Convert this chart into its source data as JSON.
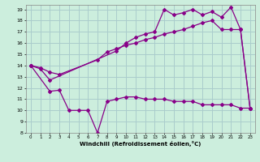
{
  "xlabel": "Windchill (Refroidissement éolien,°C)",
  "bg_color": "#cceedd",
  "grid_color": "#aacccc",
  "line_color": "#880088",
  "xlim": [
    -0.5,
    23.5
  ],
  "ylim": [
    8,
    19.4
  ],
  "xticks": [
    0,
    1,
    2,
    3,
    4,
    5,
    6,
    7,
    8,
    9,
    10,
    11,
    12,
    13,
    14,
    15,
    16,
    17,
    18,
    19,
    20,
    21,
    22,
    23
  ],
  "yticks": [
    8,
    9,
    10,
    11,
    12,
    13,
    14,
    15,
    16,
    17,
    18,
    19
  ],
  "line1_x": [
    0,
    1,
    2,
    9,
    10,
    11,
    12,
    13,
    14,
    15,
    16,
    17,
    18,
    19,
    20,
    21,
    22,
    23
  ],
  "line1_y": [
    14.0,
    13.7,
    12.7,
    15.3,
    16.0,
    16.5,
    16.8,
    17.0,
    19.0,
    18.5,
    18.7,
    19.0,
    18.5,
    18.8,
    18.3,
    19.2,
    17.2,
    10.2
  ],
  "line2_x": [
    0,
    1,
    2,
    3,
    7,
    8,
    9,
    10,
    11,
    12,
    13,
    14,
    15,
    16,
    17,
    18,
    19,
    20,
    21,
    22,
    23
  ],
  "line2_y": [
    14.0,
    13.8,
    13.4,
    13.2,
    14.5,
    15.2,
    15.5,
    15.8,
    16.0,
    16.3,
    16.5,
    16.8,
    17.0,
    17.2,
    17.5,
    17.8,
    18.0,
    17.2,
    17.2,
    17.2,
    10.2
  ],
  "line3_x": [
    0,
    2,
    3,
    4,
    5,
    6,
    7,
    8,
    9,
    10,
    11,
    12,
    13,
    14,
    15,
    16,
    17,
    18,
    19,
    20,
    21,
    22,
    23
  ],
  "line3_y": [
    14.0,
    11.7,
    11.8,
    10.0,
    10.0,
    10.0,
    8.0,
    10.8,
    11.0,
    11.2,
    11.2,
    11.0,
    11.0,
    11.0,
    10.8,
    10.8,
    10.8,
    10.5,
    10.5,
    10.5,
    10.5,
    10.2,
    10.2
  ]
}
